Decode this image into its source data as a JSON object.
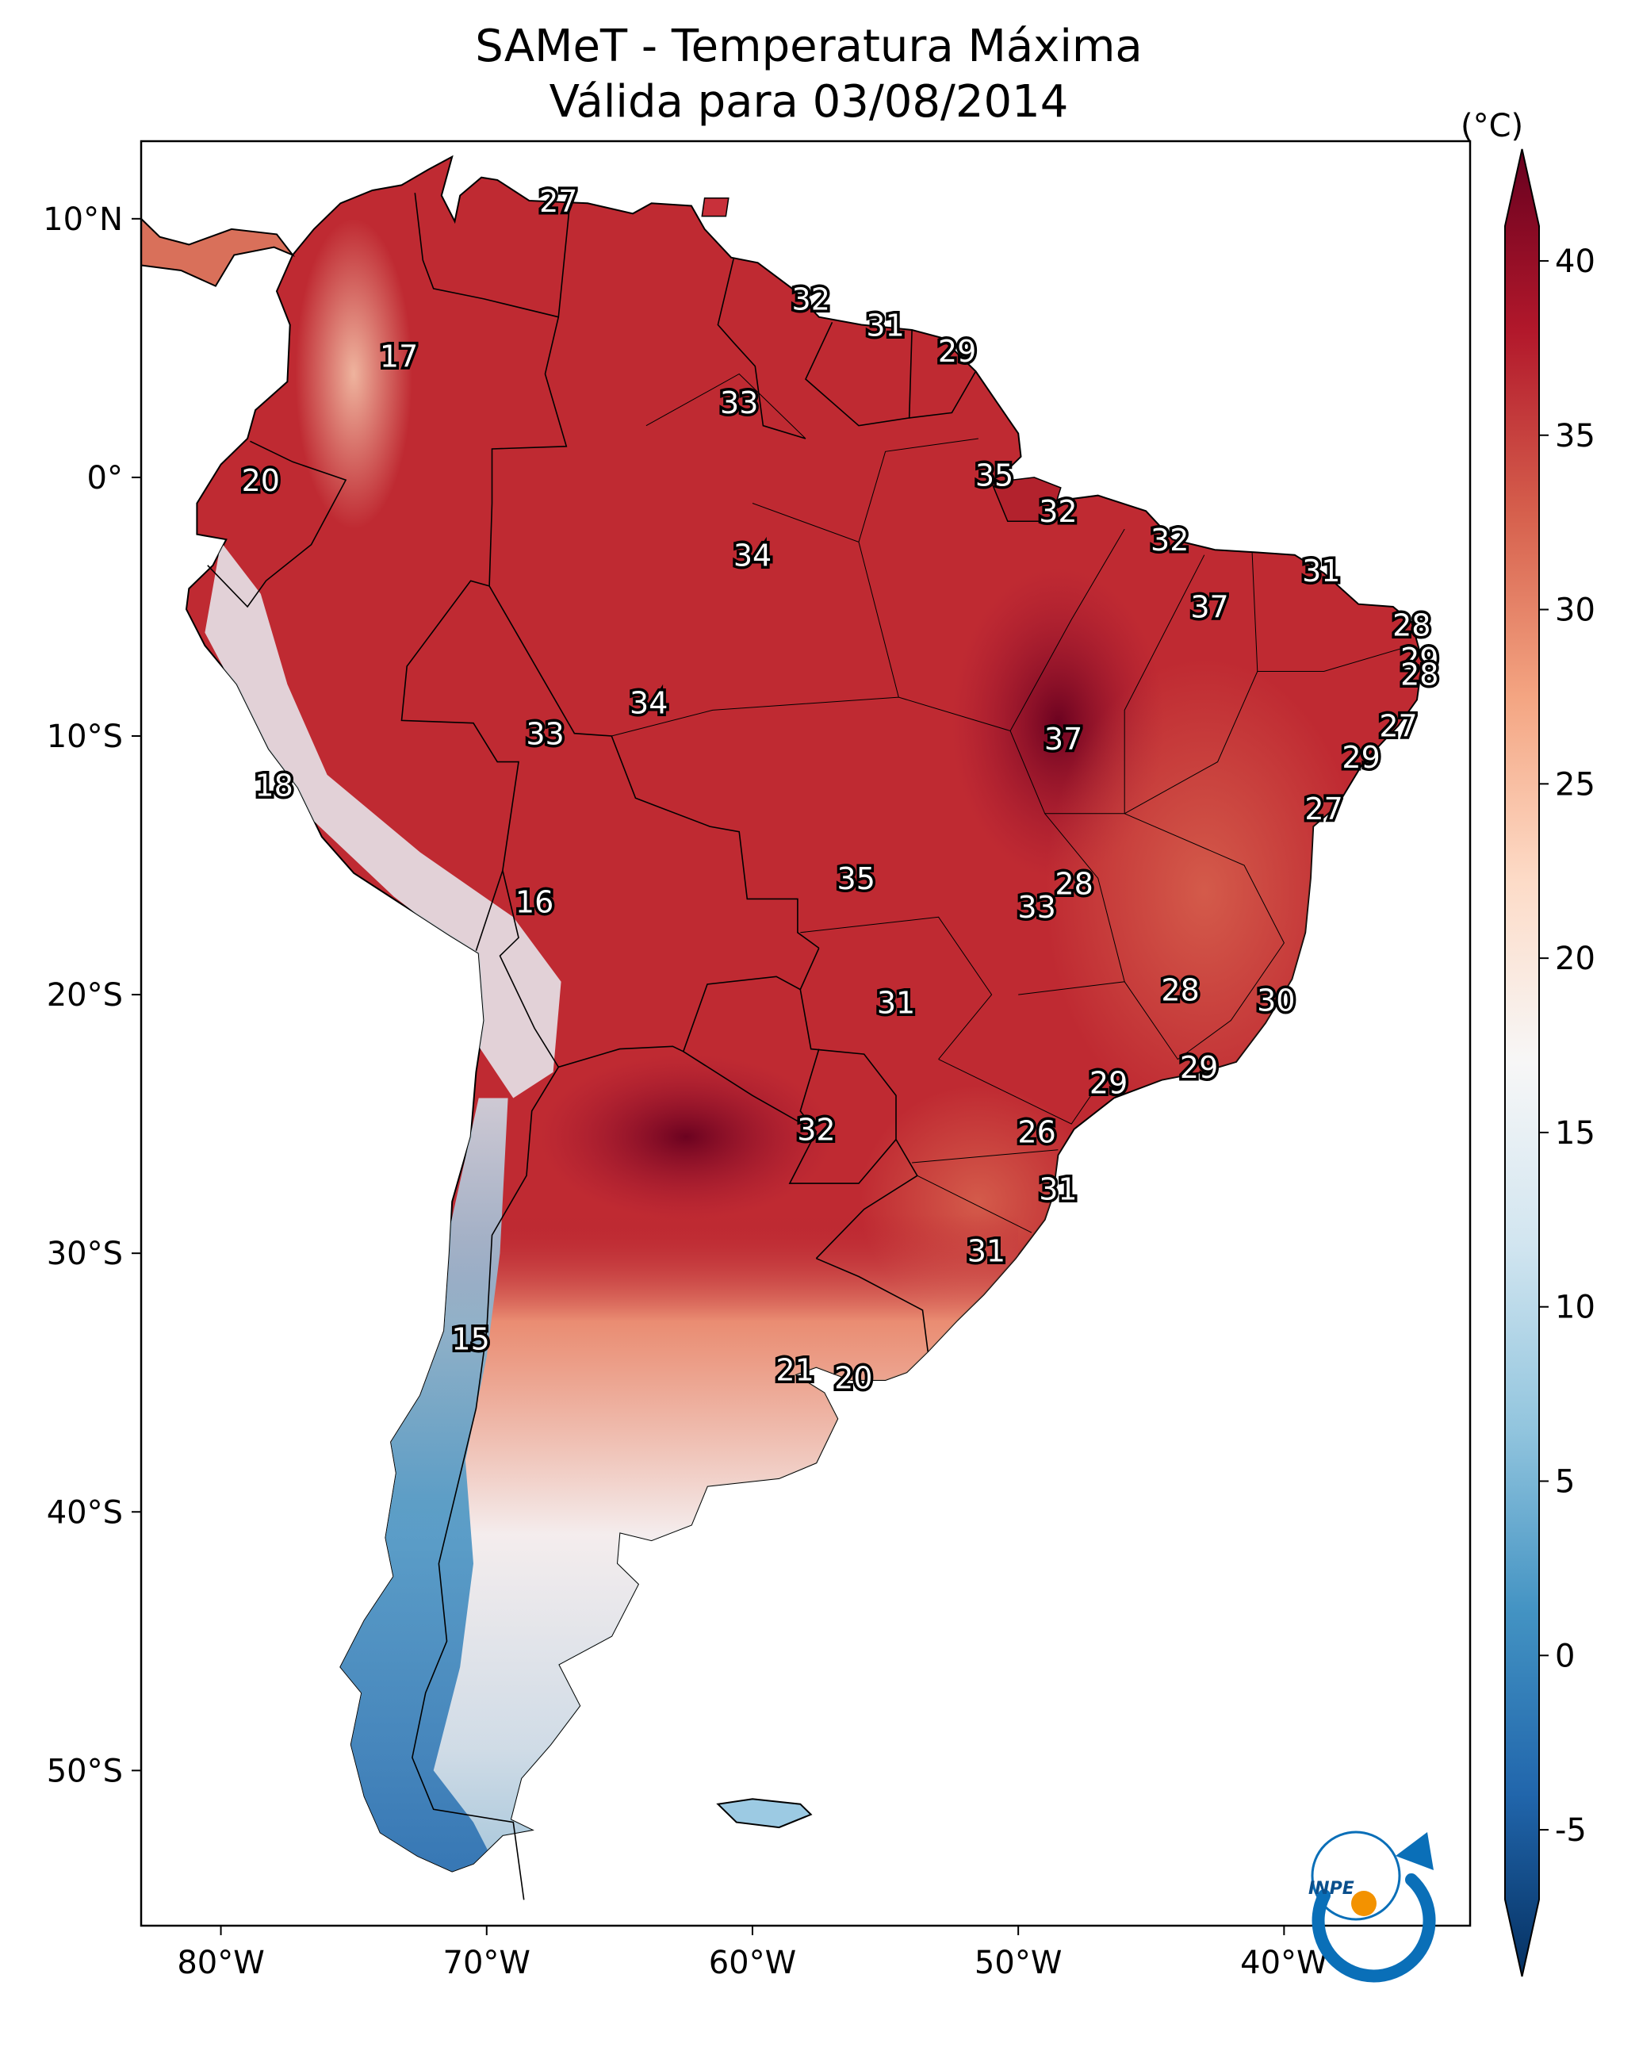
{
  "title": "SAMeT - Temperatura Máxima",
  "subtitle": "Válida para 03/08/2014",
  "map": {
    "lat_ticks": [
      "10°N",
      "0°",
      "10°S",
      "20°S",
      "30°S",
      "40°S",
      "50°S"
    ],
    "lon_ticks": [
      "80°W",
      "70°W",
      "60°W",
      "50°W",
      "40°W"
    ],
    "extent": {
      "lon_min": -83,
      "lon_max": -33,
      "lat_min": -56,
      "lat_max": 13
    }
  },
  "colorbar": {
    "unit": "(°C)",
    "ticks": [
      "40",
      "35",
      "30",
      "25",
      "20",
      "15",
      "10",
      "5",
      "0",
      "-5"
    ],
    "range": [
      -7,
      41
    ],
    "colors": [
      "#053061",
      "#2166ac",
      "#4393c3",
      "#92c5de",
      "#d1e5f0",
      "#f7f7f7",
      "#fddbc7",
      "#f4a582",
      "#d6604d",
      "#b2182b",
      "#67001f"
    ]
  },
  "logo": {
    "text": "INPE"
  },
  "station_labels": [
    {
      "lon": -67.3,
      "lat": 10.6,
      "value": "27"
    },
    {
      "lon": -57.8,
      "lat": 6.8,
      "value": "32"
    },
    {
      "lon": -55.0,
      "lat": 5.8,
      "value": "31"
    },
    {
      "lon": -52.3,
      "lat": 4.8,
      "value": "29"
    },
    {
      "lon": -73.3,
      "lat": 4.6,
      "value": "17"
    },
    {
      "lon": -60.5,
      "lat": 2.8,
      "value": "33"
    },
    {
      "lon": -78.5,
      "lat": -0.2,
      "value": "20"
    },
    {
      "lon": -50.9,
      "lat": 0.0,
      "value": "35"
    },
    {
      "lon": -48.5,
      "lat": -1.4,
      "value": "32"
    },
    {
      "lon": -44.3,
      "lat": -2.5,
      "value": "32"
    },
    {
      "lon": -60.0,
      "lat": -3.1,
      "value": "34"
    },
    {
      "lon": -38.6,
      "lat": -3.7,
      "value": "31"
    },
    {
      "lon": -42.8,
      "lat": -5.1,
      "value": "37"
    },
    {
      "lon": -35.2,
      "lat": -5.8,
      "value": "28"
    },
    {
      "lon": -34.9,
      "lat": -7.1,
      "value": "29"
    },
    {
      "lon": -34.9,
      "lat": -7.7,
      "value": "28"
    },
    {
      "lon": -63.9,
      "lat": -8.8,
      "value": "34"
    },
    {
      "lon": -67.8,
      "lat": -10.0,
      "value": "33"
    },
    {
      "lon": -48.3,
      "lat": -10.2,
      "value": "37"
    },
    {
      "lon": -35.7,
      "lat": -9.7,
      "value": "27"
    },
    {
      "lon": -37.1,
      "lat": -10.9,
      "value": "29"
    },
    {
      "lon": -78.0,
      "lat": -12.0,
      "value": "18"
    },
    {
      "lon": -38.5,
      "lat": -12.9,
      "value": "27"
    },
    {
      "lon": -56.1,
      "lat": -15.6,
      "value": "35"
    },
    {
      "lon": -47.9,
      "lat": -15.8,
      "value": "28"
    },
    {
      "lon": -49.3,
      "lat": -16.7,
      "value": "33"
    },
    {
      "lon": -68.2,
      "lat": -16.5,
      "value": "16"
    },
    {
      "lon": -43.9,
      "lat": -19.9,
      "value": "28"
    },
    {
      "lon": -40.3,
      "lat": -20.3,
      "value": "30"
    },
    {
      "lon": -54.6,
      "lat": -20.4,
      "value": "31"
    },
    {
      "lon": -43.2,
      "lat": -22.9,
      "value": "29"
    },
    {
      "lon": -46.6,
      "lat": -23.5,
      "value": "29"
    },
    {
      "lon": -57.6,
      "lat": -25.3,
      "value": "32"
    },
    {
      "lon": -49.3,
      "lat": -25.4,
      "value": "26"
    },
    {
      "lon": -48.5,
      "lat": -27.6,
      "value": "31"
    },
    {
      "lon": -51.2,
      "lat": -30.0,
      "value": "31"
    },
    {
      "lon": -70.6,
      "lat": -33.4,
      "value": "15"
    },
    {
      "lon": -58.4,
      "lat": -34.6,
      "value": "21"
    },
    {
      "lon": -56.2,
      "lat": -34.9,
      "value": "20"
    }
  ]
}
